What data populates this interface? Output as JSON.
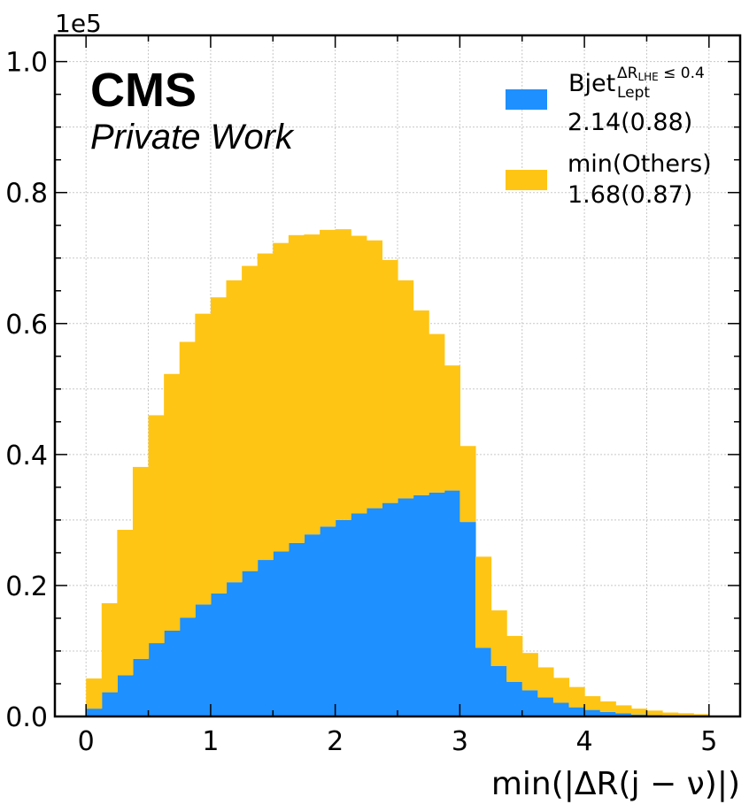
{
  "chart_data": {
    "type": "bar",
    "stacked": true,
    "xlabel": "min(|ΔR(j − ν)|)",
    "ylabel": "",
    "xlim": [
      -0.25,
      5.25
    ],
    "ylim": [
      0,
      1.04
    ],
    "y_offset_label": "1e5",
    "grid": true,
    "legend_position": "top-right",
    "x_ticks": [
      "0",
      "1",
      "2",
      "3",
      "4",
      "5"
    ],
    "y_ticks": [
      "0.0",
      "0.2",
      "0.4",
      "0.6",
      "0.8",
      "1.0"
    ],
    "bin_edges": [
      0,
      0.125,
      0.25,
      0.375,
      0.5,
      0.625,
      0.75,
      0.875,
      1.0,
      1.125,
      1.25,
      1.375,
      1.5,
      1.625,
      1.75,
      1.875,
      2.0,
      2.125,
      2.25,
      2.375,
      2.5,
      2.625,
      2.75,
      2.875,
      3.0,
      3.125,
      3.25,
      3.375,
      3.5,
      3.625,
      3.75,
      3.875,
      4.0,
      4.125,
      4.25,
      4.375,
      4.5,
      4.625,
      4.75,
      4.875,
      5.0
    ],
    "series": [
      {
        "label_main": "Bjet",
        "label_sup": "ΔR",
        "label_sup_sub": "LHE",
        "label_sup_tail": " ≤ 0.4",
        "label_sub": "Lept",
        "stats": "2.14(0.88)",
        "color": "#1e90ff",
        "values": [
          0.012,
          0.037,
          0.063,
          0.088,
          0.112,
          0.131,
          0.151,
          0.171,
          0.188,
          0.205,
          0.222,
          0.239,
          0.252,
          0.265,
          0.278,
          0.29,
          0.3,
          0.31,
          0.318,
          0.326,
          0.333,
          0.338,
          0.342,
          0.345,
          0.297,
          0.105,
          0.077,
          0.053,
          0.04,
          0.029,
          0.021,
          0.014,
          0.01,
          0.007,
          0.005,
          0.003,
          0.002,
          0.001,
          0.001,
          0.0005
        ]
      },
      {
        "label_main": "min(Others)",
        "stats": "1.68(0.87)",
        "color": "#ffc515",
        "values": [
          0.046,
          0.136,
          0.222,
          0.293,
          0.348,
          0.392,
          0.421,
          0.444,
          0.452,
          0.461,
          0.466,
          0.468,
          0.471,
          0.47,
          0.458,
          0.453,
          0.444,
          0.424,
          0.409,
          0.371,
          0.333,
          0.282,
          0.242,
          0.191,
          0.116,
          0.139,
          0.085,
          0.07,
          0.057,
          0.046,
          0.038,
          0.031,
          0.021,
          0.016,
          0.012,
          0.009,
          0.007,
          0.005,
          0.004,
          0.003
        ]
      }
    ]
  },
  "annotations": {
    "cms": "CMS",
    "private_work": "Private Work"
  }
}
